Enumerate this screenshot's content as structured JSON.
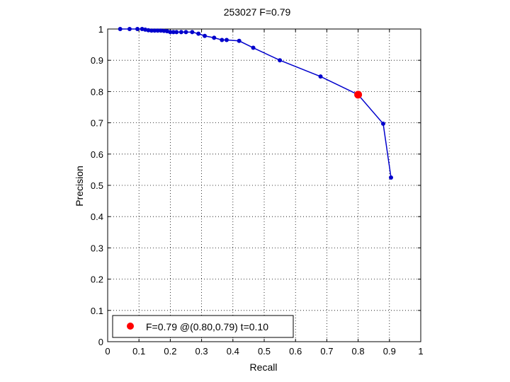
{
  "chart_data": {
    "type": "line",
    "title": "253027 F=0.79",
    "xlabel": "Recall",
    "ylabel": "Precision",
    "xlim": [
      0,
      1
    ],
    "ylim": [
      0,
      1
    ],
    "xticks": [
      "0",
      "0.1",
      "0.2",
      "0.3",
      "0.4",
      "0.5",
      "0.6",
      "0.7",
      "0.8",
      "0.9",
      "1"
    ],
    "yticks": [
      "0",
      "0.1",
      "0.2",
      "0.3",
      "0.4",
      "0.5",
      "0.6",
      "0.7",
      "0.8",
      "0.9",
      "1"
    ],
    "grid": true,
    "legend_position": "bottom-left",
    "series": [
      {
        "color": "#0000cc",
        "points": [
          [
            0.04,
            1.0
          ],
          [
            0.07,
            1.0
          ],
          [
            0.095,
            1.0
          ],
          [
            0.11,
            1.0
          ],
          [
            0.12,
            0.998
          ],
          [
            0.13,
            0.996
          ],
          [
            0.14,
            0.995
          ],
          [
            0.15,
            0.995
          ],
          [
            0.16,
            0.995
          ],
          [
            0.17,
            0.995
          ],
          [
            0.18,
            0.994
          ],
          [
            0.19,
            0.993
          ],
          [
            0.2,
            0.99
          ],
          [
            0.21,
            0.99
          ],
          [
            0.22,
            0.99
          ],
          [
            0.235,
            0.99
          ],
          [
            0.25,
            0.99
          ],
          [
            0.27,
            0.99
          ],
          [
            0.29,
            0.985
          ],
          [
            0.31,
            0.978
          ],
          [
            0.34,
            0.972
          ],
          [
            0.365,
            0.965
          ],
          [
            0.38,
            0.965
          ],
          [
            0.42,
            0.962
          ],
          [
            0.465,
            0.94
          ],
          [
            0.55,
            0.9
          ],
          [
            0.68,
            0.848
          ],
          [
            0.8,
            0.79
          ],
          [
            0.88,
            0.697
          ],
          [
            0.905,
            0.525
          ]
        ]
      }
    ],
    "highlight": {
      "recall": 0.8,
      "precision": 0.79,
      "color": "#ff0000",
      "legend_label": "F=0.79 @(0.80,0.79) t=0.10"
    }
  }
}
